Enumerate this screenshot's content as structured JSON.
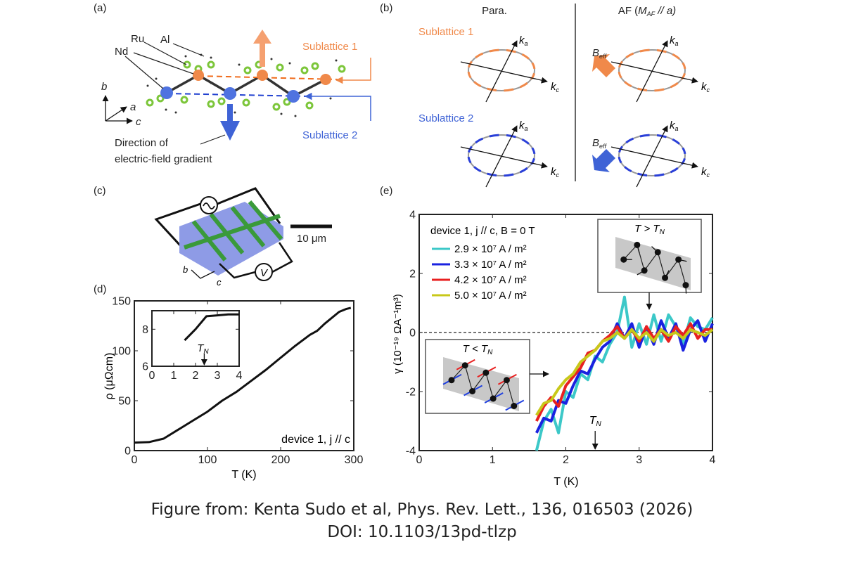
{
  "panels": {
    "a": {
      "label": "(a)",
      "atoms": {
        "ru": "Ru",
        "al": "Al",
        "nd": "Nd"
      },
      "sublattice1": "Sublattice 1",
      "sublattice2": "Sublattice 2",
      "axes": {
        "b": "b",
        "a": "a",
        "c": "c"
      },
      "efg_line1": "Direction of",
      "efg_line2": "electric-field gradient"
    },
    "b": {
      "label": "(b)",
      "para_title": "Para.",
      "af_title_prefix": "AF (",
      "af_title_m": "M",
      "af_title_sub": "AF",
      "af_title_suffix": " // a)",
      "sublattice1": "Sublattice 1",
      "sublattice2": "Sublattice 2",
      "ka": "k",
      "ka_sub": "a",
      "kc": "k",
      "kc_sub": "c",
      "beff": "B",
      "beff_sub": "eff"
    },
    "c": {
      "label": "(c)",
      "scale_bar": "10 μm",
      "voltage": "V",
      "axis_b": "b",
      "axis_c": "c"
    },
    "d": {
      "label": "(d)"
    },
    "e": {
      "label": "(e)"
    }
  },
  "colors": {
    "sublattice1": "#f0894a",
    "sublattice2": "#3f63d6",
    "al_atom": "#7cc63a",
    "device_slab": "#8e9be6",
    "electrode": "#3a9a3a",
    "cyan": "#3cc8c8",
    "blue": "#1a22e0",
    "red": "#e82020",
    "yellow": "#c8c81a"
  },
  "chart_data": [
    {
      "panel": "d",
      "type": "line",
      "xlabel": "T (K)",
      "ylabel": "ρ (μΩcm)",
      "xlim": [
        0,
        300
      ],
      "ylim": [
        0,
        150
      ],
      "xticks": [
        "0",
        "100",
        "200",
        "300"
      ],
      "yticks": [
        "0",
        "50",
        "100",
        "150"
      ],
      "annotation": "device 1, j // c",
      "x": [
        0,
        20,
        40,
        60,
        80,
        100,
        120,
        140,
        160,
        180,
        200,
        220,
        240,
        250,
        260,
        280,
        290,
        296
      ],
      "y": [
        8,
        8.5,
        12,
        21,
        30,
        39,
        50,
        59,
        70,
        81,
        93,
        105,
        116,
        120,
        127,
        139,
        142,
        143
      ]
    },
    {
      "panel": "d-inset",
      "type": "line",
      "xlim": [
        0,
        4
      ],
      "ylim": [
        6,
        9
      ],
      "xticks": [
        "0",
        "1",
        "2",
        "3",
        "4"
      ],
      "yticks": [
        "6",
        "8"
      ],
      "annotation": "T",
      "annotation_sub": "N",
      "tn_marker": 2.4,
      "x": [
        1.5,
        2.0,
        2.5,
        3.0,
        3.5,
        4.0
      ],
      "y": [
        7.4,
        8.0,
        8.7,
        8.75,
        8.8,
        8.8
      ]
    },
    {
      "panel": "e",
      "type": "line",
      "xlabel": "T (K)",
      "ylabel": "γ (10⁻¹⁹ ΩA⁻¹m³)",
      "xlim": [
        0,
        4
      ],
      "ylim": [
        -4,
        4
      ],
      "xticks": [
        "0",
        "1",
        "2",
        "3",
        "4"
      ],
      "yticks": [
        "-4",
        "-2",
        "0",
        "2",
        "4"
      ],
      "zero_line": "dashed",
      "legend_title": "device 1, j // c, B = 0 T",
      "legend_position": "top-left",
      "tn_label": "T",
      "tn_sub": "N",
      "tn_marker": 2.4,
      "inset_above": "T > T",
      "inset_below": "T < T",
      "inset_sub": "N",
      "x": [
        1.6,
        1.7,
        1.8,
        1.9,
        2.0,
        2.1,
        2.2,
        2.3,
        2.4,
        2.5,
        2.6,
        2.7,
        2.8,
        2.9,
        3.0,
        3.1,
        3.2,
        3.3,
        3.4,
        3.5,
        3.6,
        3.7,
        3.8,
        3.9,
        4.0
      ],
      "series": [
        {
          "name": "2.9 × 10⁷ A / m²",
          "color": "#3cc8c8",
          "values": [
            -4.0,
            -3.0,
            -2.6,
            -3.4,
            -2.0,
            -2.2,
            -1.4,
            -1.6,
            -0.8,
            -1.0,
            -0.4,
            0.0,
            1.2,
            -0.5,
            0.3,
            -0.4,
            0.6,
            -0.3,
            0.6,
            0.2,
            -0.4,
            0.5,
            0.2,
            0.1,
            0.5
          ]
        },
        {
          "name": "3.3 × 10⁷ A / m²",
          "color": "#1a22e0",
          "values": [
            -3.4,
            -2.9,
            -3.0,
            -2.3,
            -2.4,
            -1.8,
            -1.3,
            -1.4,
            -0.9,
            -0.5,
            -0.3,
            0.3,
            -0.2,
            0.3,
            -0.5,
            0.2,
            -0.4,
            0.4,
            -0.2,
            0.3,
            -0.6,
            0.1,
            0.4,
            -0.3,
            0.3
          ]
        },
        {
          "name": "4.2 × 10⁷ A / m²",
          "color": "#e82020",
          "values": [
            -3.0,
            -2.5,
            -2.2,
            -2.5,
            -1.8,
            -1.5,
            -1.2,
            -0.7,
            -0.6,
            -0.3,
            -0.1,
            0.2,
            -0.2,
            0.1,
            -0.3,
            0.2,
            -0.2,
            0.1,
            -0.3,
            0.2,
            -0.1,
            0.3,
            -0.2,
            0.1,
            0.1
          ]
        },
        {
          "name": "5.0 × 10⁷ A / m²",
          "color": "#c8c81a",
          "values": [
            -2.8,
            -2.4,
            -2.3,
            -1.9,
            -1.6,
            -1.4,
            -1.0,
            -0.8,
            -0.6,
            -0.3,
            -0.2,
            0.0,
            -0.2,
            0.1,
            -0.2,
            0.0,
            -0.3,
            0.1,
            -0.1,
            0.0,
            -0.2,
            0.1,
            0.0,
            -0.1,
            0.1
          ]
        }
      ]
    }
  ],
  "caption": {
    "line1": "Figure from: Kenta Sudo et al, Phys. Rev. Lett., 136, 016503 (2026)",
    "line2": "DOI:  10.1103/13pd-tlzp"
  }
}
